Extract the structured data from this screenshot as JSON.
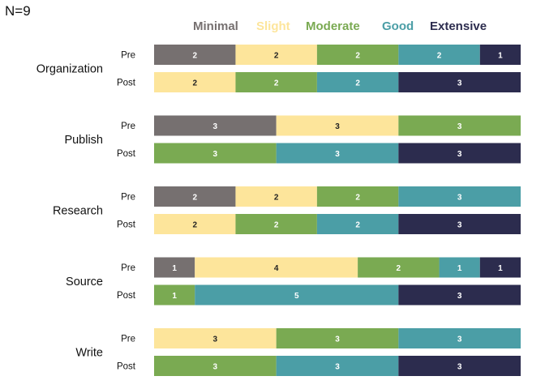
{
  "sample_label": "N=9",
  "chart_data": {
    "type": "bar",
    "orientation": "horizontal",
    "stacked": true,
    "categories": [
      "Minimal",
      "Slight",
      "Moderate",
      "Good",
      "Extensive"
    ],
    "colors": [
      "#767070",
      "#fde59b",
      "#7aaa52",
      "#4b9ea6",
      "#2c2c4e"
    ],
    "label_colors": [
      "#ffffff",
      "#222222",
      "#ffffff",
      "#ffffff",
      "#ffffff"
    ],
    "legend_position": "top",
    "total": 9,
    "groups": [
      {
        "name": "Organization",
        "rows": [
          {
            "label": "Pre",
            "values": [
              2,
              2,
              2,
              2,
              1
            ]
          },
          {
            "label": "Post",
            "values": [
              0,
              2,
              2,
              2,
              3
            ]
          }
        ]
      },
      {
        "name": "Publish",
        "rows": [
          {
            "label": "Pre",
            "values": [
              3,
              3,
              3,
              0,
              0
            ]
          },
          {
            "label": "Post",
            "values": [
              0,
              0,
              3,
              3,
              3
            ]
          }
        ]
      },
      {
        "name": "Research",
        "rows": [
          {
            "label": "Pre",
            "values": [
              2,
              2,
              2,
              3,
              0
            ]
          },
          {
            "label": "Post",
            "values": [
              0,
              2,
              2,
              2,
              3
            ]
          }
        ]
      },
      {
        "name": "Source",
        "rows": [
          {
            "label": "Pre",
            "values": [
              1,
              4,
              2,
              1,
              1
            ]
          },
          {
            "label": "Post",
            "values": [
              0,
              0,
              1,
              5,
              3
            ]
          }
        ]
      },
      {
        "name": "Write",
        "rows": [
          {
            "label": "Pre",
            "values": [
              0,
              3,
              3,
              3,
              0
            ]
          },
          {
            "label": "Post",
            "values": [
              0,
              0,
              3,
              3,
              3
            ]
          }
        ]
      }
    ]
  }
}
